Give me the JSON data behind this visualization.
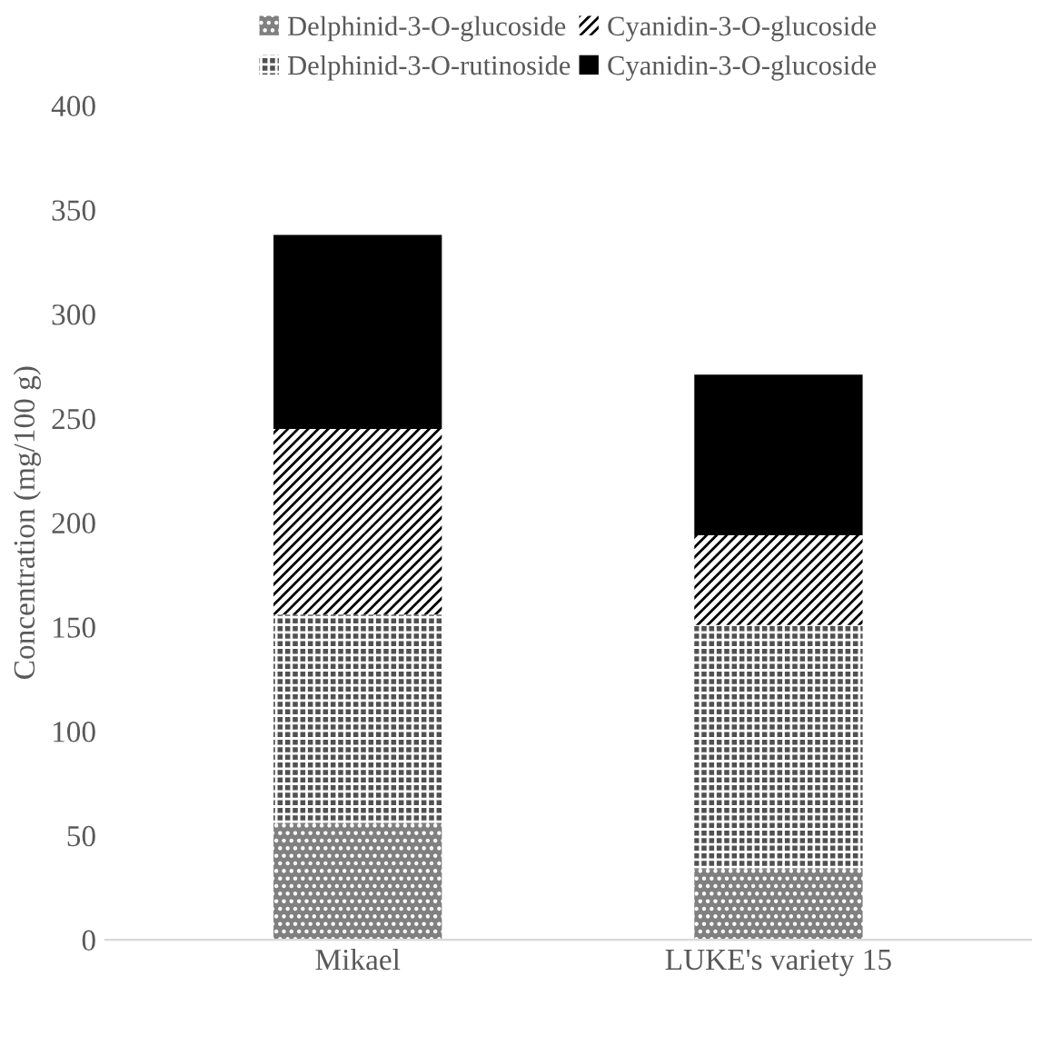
{
  "chart_data": {
    "type": "bar",
    "stacked": true,
    "ylabel": "Concentration (mg/100 g)",
    "categories": [
      "Mikael",
      "LUKE's variety 15"
    ],
    "series": [
      {
        "name": "Delphinid-3-O-glucoside",
        "color": "#808080",
        "values": [
          56,
          34
        ]
      },
      {
        "name": "Delphinid-3-O-rutinoside",
        "color": "#505050",
        "values": [
          100,
          117
        ]
      },
      {
        "name": "Cyanidin-3-O-glucoside",
        "color": "#ffffff",
        "values": [
          89,
          43
        ]
      },
      {
        "name": "Cyanidin-3-O-glucoside",
        "color": "#000000",
        "values": [
          93,
          77
        ]
      }
    ],
    "ylim": [
      0,
      400
    ],
    "yticks": [
      0,
      50,
      100,
      150,
      200,
      250,
      300,
      350,
      400
    ],
    "grid": false,
    "legend": "top"
  }
}
